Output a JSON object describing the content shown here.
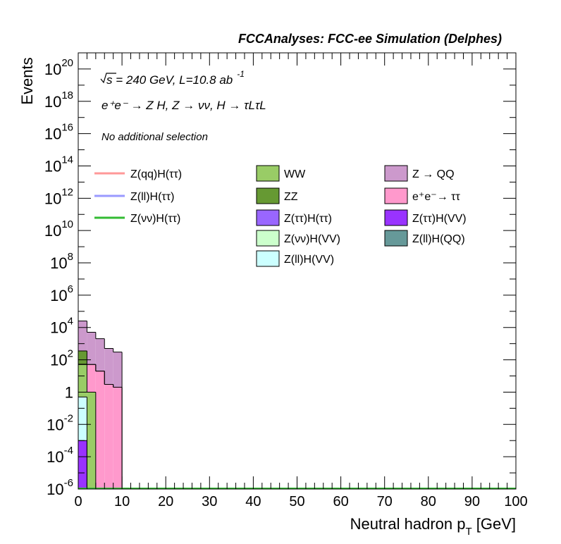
{
  "chart_data": {
    "type": "bar",
    "header": "FCCAnalyses: FCC-ee Simulation (Delphes)",
    "annotations": {
      "energy_lumi_prefix": "s = 240 GeV, L=10.8 ab",
      "energy_lumi_exp": "-1",
      "process": "e⁺e⁻ → Z H, Z  → νν, H → τLτL",
      "selection": "No additional selection"
    },
    "xlabel_main": "Neutral hadron p",
    "xlabel_sub": "T",
    "xlabel_unit": " [GeV]",
    "ylabel": "Events",
    "xlim": [
      0,
      100
    ],
    "ylim": [
      1e-06,
      1e+21
    ],
    "ylog": true,
    "x_ticks": [
      "0",
      "10",
      "20",
      "30",
      "40",
      "50",
      "60",
      "70",
      "80",
      "90",
      "100"
    ],
    "y_ticks": [
      {
        "v": 1e-06,
        "mant": "10",
        "exp": "-6"
      },
      {
        "v": 0.0001,
        "mant": "10",
        "exp": "-4"
      },
      {
        "v": 0.01,
        "mant": "10",
        "exp": "-2"
      },
      {
        "v": 1,
        "mant": "1",
        "exp": ""
      },
      {
        "v": 100.0,
        "mant": "10",
        "exp": "2"
      },
      {
        "v": 10000.0,
        "mant": "10",
        "exp": "4"
      },
      {
        "v": 1000000.0,
        "mant": "10",
        "exp": "6"
      },
      {
        "v": 100000000.0,
        "mant": "10",
        "exp": "8"
      },
      {
        "v": 10000000000.0,
        "mant": "10",
        "exp": "10"
      },
      {
        "v": 1000000000000.0,
        "mant": "10",
        "exp": "12"
      },
      {
        "v": 100000000000000.0,
        "mant": "10",
        "exp": "14"
      },
      {
        "v": 1e+16,
        "mant": "10",
        "exp": "16"
      },
      {
        "v": 1e+18,
        "mant": "10",
        "exp": "18"
      },
      {
        "v": 1e+20,
        "mant": "10",
        "exp": "20"
      }
    ],
    "bin_width": 2,
    "bin_edges": [
      0,
      2,
      4,
      6,
      8,
      10
    ],
    "stack": [
      {
        "name": "Z(ττ)H(VV)",
        "color": "#9933ff",
        "values": [
          0.001,
          0,
          0,
          0,
          0
        ]
      },
      {
        "name": "Z(ll)H(VV)",
        "color": "#ccffff",
        "values": [
          0.5,
          0,
          0,
          0,
          0
        ]
      },
      {
        "name": "WW",
        "color": "#99cc66",
        "values": [
          50,
          1,
          0,
          0,
          0
        ]
      },
      {
        "name": "e⁺e⁻→ ττ",
        "color": "#ff99cc",
        "values": [
          3,
          50,
          20,
          3,
          2
        ]
      },
      {
        "name": "ZZ",
        "color": "#669933",
        "values": [
          300,
          0,
          0,
          0,
          0
        ]
      },
      {
        "name": "Z → QQ",
        "color": "#cc99cc",
        "values": [
          25000,
          5000,
          2000,
          500,
          300
        ]
      }
    ],
    "stack_top": [
      25000,
      5000,
      2000,
      500,
      300
    ],
    "legend": {
      "lines": [
        {
          "name": "Z(qq)H(ττ)",
          "color": "#ff9999"
        },
        {
          "name": "Z(ll)H(ττ)",
          "color": "#9999ff"
        },
        {
          "name": "Z(νν)H(ττ)",
          "color": "#33bb33"
        }
      ],
      "col2": [
        {
          "name": "WW",
          "color": "#99cc66"
        },
        {
          "name": "ZZ",
          "color": "#669933"
        },
        {
          "name": "Z(ττ)H(ττ)",
          "color": "#9966ff"
        },
        {
          "name": "Z(νν)H(VV)",
          "color": "#ccffcc"
        },
        {
          "name": "Z(ll)H(VV)",
          "color": "#ccffff"
        }
      ],
      "col3": [
        {
          "name": "Z → QQ",
          "color": "#cc99cc"
        },
        {
          "name": "e⁺e⁻→ ττ",
          "color": "#ff99cc"
        },
        {
          "name": "Z(ττ)H(VV)",
          "color": "#9933ff"
        },
        {
          "name": "Z(ll)H(QQ)",
          "color": "#669999"
        }
      ]
    }
  }
}
